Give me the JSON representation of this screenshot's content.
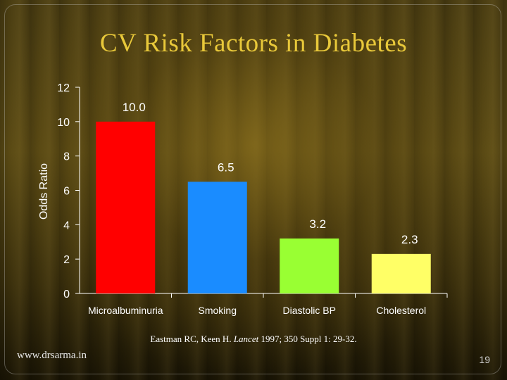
{
  "slide": {
    "title": "CV Risk Factors in Diabetes",
    "citation_before": "Eastman RC, Keen H. ",
    "citation_journal": "Lancet",
    "citation_after": " 1997; 350 Suppl 1: 29-32.",
    "footer": "www.drsarma.in",
    "page_number": "19"
  },
  "chart_data": {
    "type": "bar",
    "title": "",
    "xlabel": "",
    "ylabel": "Odds Ratio",
    "categories": [
      "Microalbuminuria",
      "Smoking",
      "Diastolic BP",
      "Cholesterol"
    ],
    "values": [
      10.0,
      6.5,
      3.2,
      2.3
    ],
    "value_labels": [
      "10.0",
      "6.5",
      "3.2",
      "2.3"
    ],
    "colors": [
      "#ff0000",
      "#1a8cff",
      "#99ff33",
      "#ffff66"
    ],
    "yticks": [
      "0",
      "2",
      "4",
      "6",
      "8",
      "10",
      "12"
    ],
    "ylim": [
      0,
      12
    ],
    "grid": false,
    "legend": "none"
  }
}
